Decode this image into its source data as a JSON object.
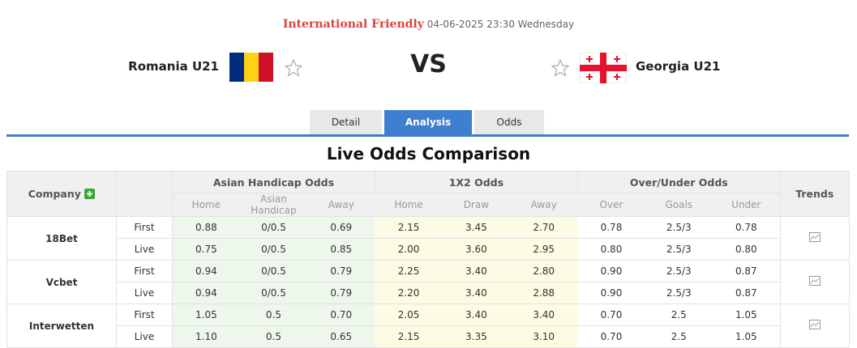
{
  "header": {
    "competition": "International Friendly",
    "datetime": "04-06-2025 23:30 Wednesday",
    "home": "Romania U21",
    "vs": "VS",
    "away": "Georgia U21"
  },
  "tabs": [
    "Detail",
    "Analysis",
    "Odds"
  ],
  "table": {
    "title": "Live Odds Comparison",
    "company_header": "Company",
    "groups": [
      "Asian Handicap Odds",
      "1X2 Odds",
      "Over/Under Odds"
    ],
    "trends_header": "Trends",
    "subheaders": [
      "Home",
      "Asian Handicap",
      "Away",
      "Home",
      "Draw",
      "Away",
      "Over",
      "Goals",
      "Under"
    ],
    "companies": [
      {
        "name": "18Bet",
        "rows": [
          {
            "label": "First",
            "values": [
              "0.88",
              "0/0.5",
              "0.69",
              "2.15",
              "3.45",
              "2.70",
              "0.78",
              "2.5/3",
              "0.78"
            ]
          },
          {
            "label": "Live",
            "values": [
              "0.75",
              "0/0.5",
              "0.85",
              "2.00",
              "3.60",
              "2.95",
              "0.80",
              "2.5/3",
              "0.80"
            ]
          }
        ]
      },
      {
        "name": "Vcbet",
        "rows": [
          {
            "label": "First",
            "values": [
              "0.94",
              "0/0.5",
              "0.79",
              "2.25",
              "3.40",
              "2.80",
              "0.90",
              "2.5/3",
              "0.87"
            ]
          },
          {
            "label": "Live",
            "values": [
              "0.94",
              "0/0.5",
              "0.79",
              "2.20",
              "3.40",
              "2.88",
              "0.90",
              "2.5/3",
              "0.87"
            ]
          }
        ]
      },
      {
        "name": "Interwetten",
        "rows": [
          {
            "label": "First",
            "values": [
              "1.05",
              "0.5",
              "0.70",
              "2.05",
              "3.40",
              "3.40",
              "0.70",
              "2.5",
              "1.05"
            ]
          },
          {
            "label": "Live",
            "values": [
              "1.10",
              "0.5",
              "0.65",
              "2.15",
              "3.35",
              "3.10",
              "0.70",
              "2.5",
              "1.05"
            ]
          }
        ]
      }
    ]
  }
}
